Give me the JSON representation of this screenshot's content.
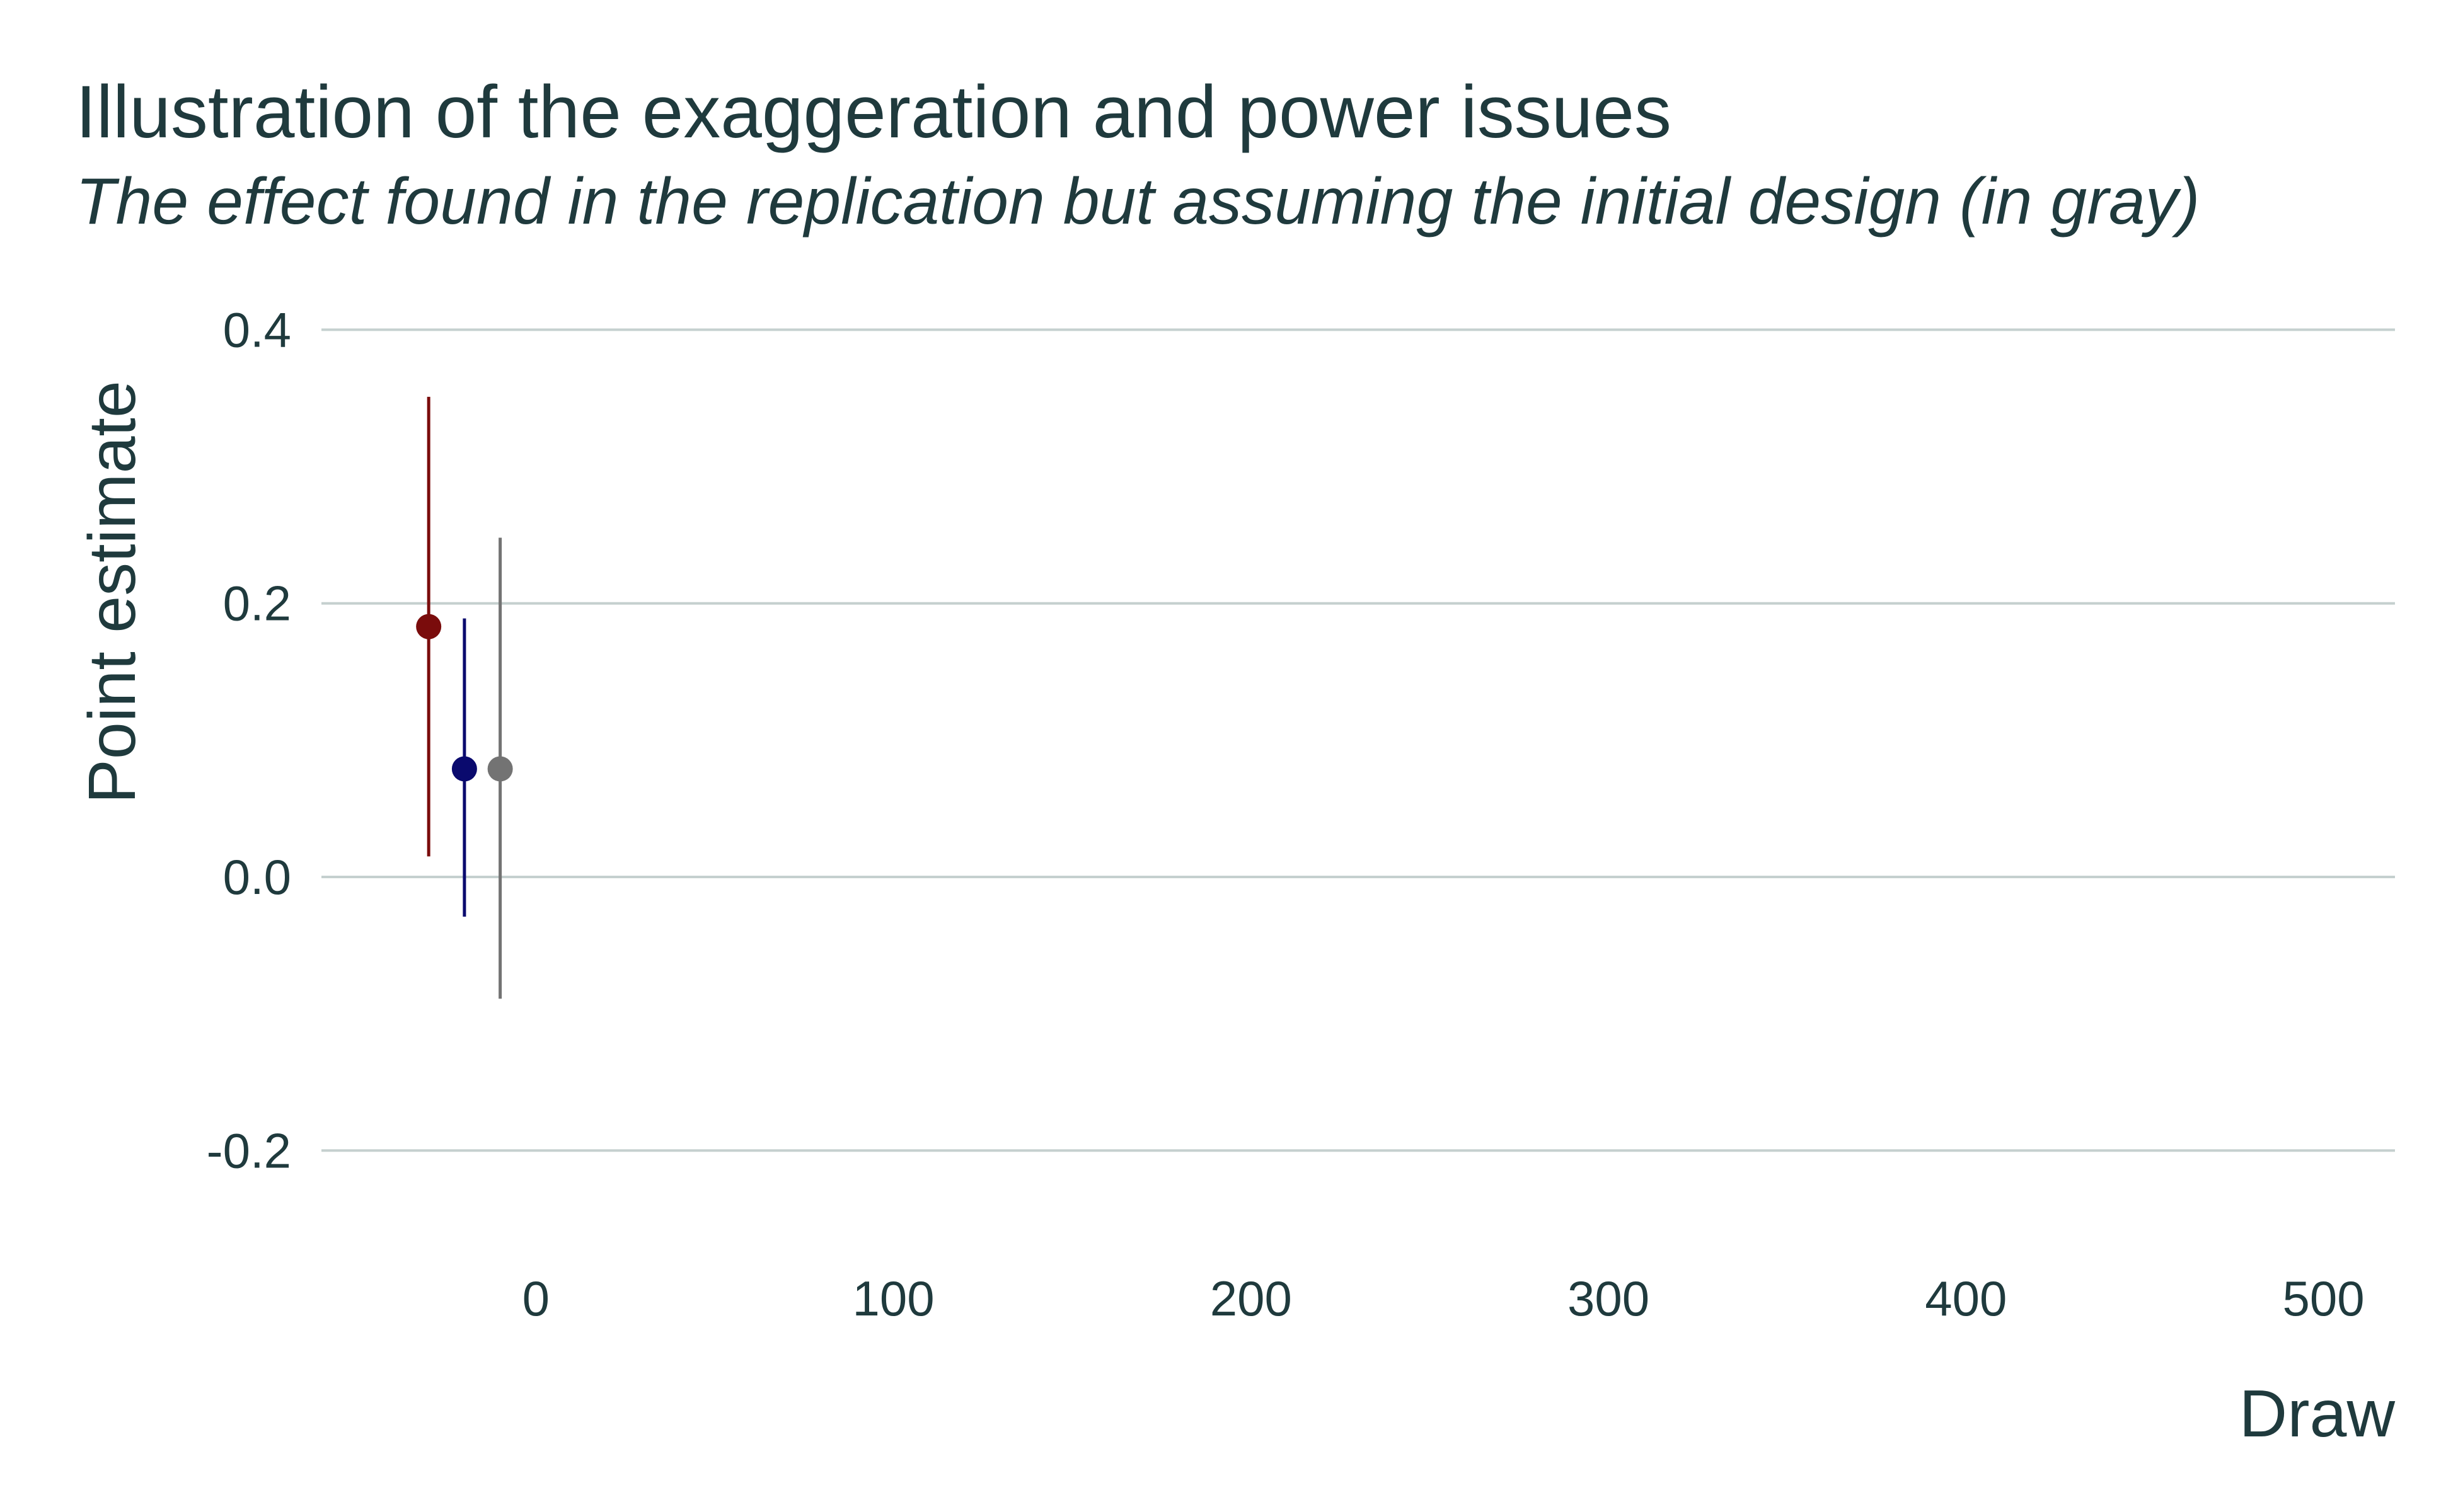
{
  "chart_data": {
    "type": "scatter",
    "title": "Illustration of the exaggeration and power issues",
    "subtitle": "The effect found in the replication but assuming the initial design (in gray)",
    "xlabel": "Draw",
    "ylabel": "Point estimate",
    "xlim": [
      -60,
      520
    ],
    "ylim": [
      -0.28,
      0.42
    ],
    "x_ticks": [
      0,
      100,
      200,
      300,
      400,
      500
    ],
    "x_tick_labels": [
      "0",
      "100",
      "200",
      "300",
      "400",
      "500"
    ],
    "y_ticks": [
      0.4,
      0.2,
      0.0,
      -0.2
    ],
    "y_tick_labels": [
      "0.4",
      "0.2",
      "0.0",
      "-0.2"
    ],
    "grid": "horizontal",
    "legend": "none",
    "points": [
      {
        "x": -30,
        "y": 0.183,
        "lower": 0.015,
        "upper": 0.351,
        "color": "#7a0c0c"
      },
      {
        "x": -20,
        "y": 0.079,
        "lower": -0.029,
        "upper": 0.189,
        "color": "#0a0a6e"
      },
      {
        "x": -10,
        "y": 0.079,
        "lower": -0.089,
        "upper": 0.248,
        "color": "#737373"
      }
    ]
  }
}
